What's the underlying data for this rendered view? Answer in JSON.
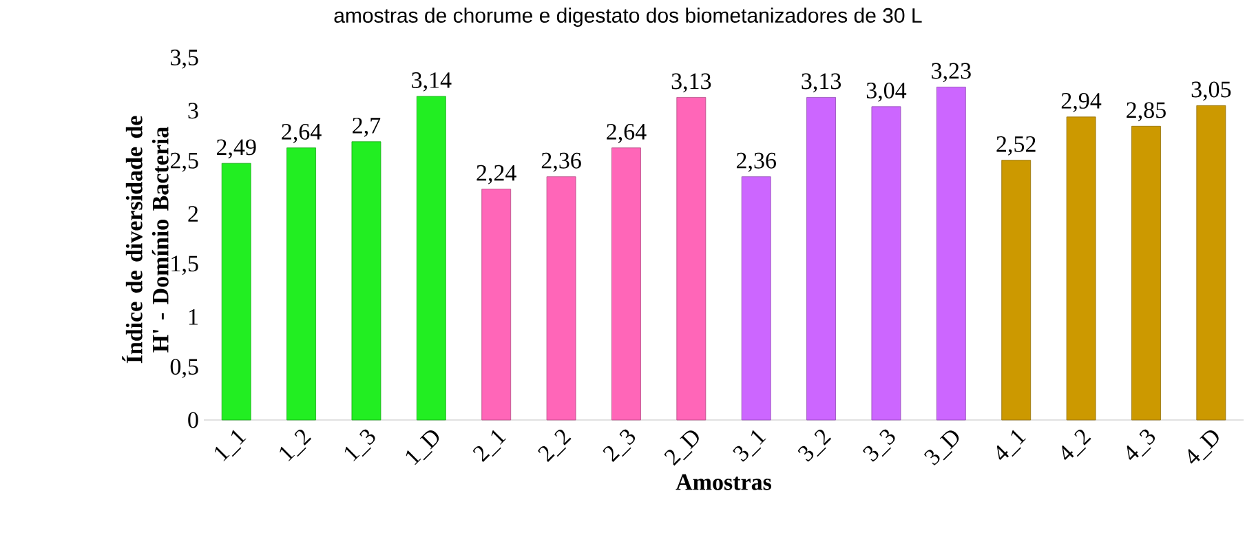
{
  "chart_data": {
    "type": "bar",
    "title": "amostras de chorume e digestato dos biometanizadores de 30 L",
    "xlabel": "Amostras",
    "ylabel": "Índice de diversidade de H' - Domínio Bacteria",
    "categories": [
      "1_1",
      "1_2",
      "1_3",
      "1_D",
      "2_1",
      "2_2",
      "2_3",
      "2_D",
      "3_1",
      "3_2",
      "3_3",
      "3_D",
      "4_1",
      "4_2",
      "4_3",
      "4_D"
    ],
    "values": [
      2.49,
      2.64,
      2.7,
      3.14,
      2.24,
      2.36,
      2.64,
      3.13,
      2.36,
      3.13,
      3.04,
      3.23,
      2.52,
      2.94,
      2.85,
      3.05
    ],
    "value_labels": [
      "2,49",
      "2,64",
      "2,7",
      "3,14",
      "2,24",
      "2,36",
      "2,64",
      "3,13",
      "2,36",
      "3,13",
      "3,04",
      "3,23",
      "2,52",
      "2,94",
      "2,85",
      "3,05"
    ],
    "colors": [
      "#22ee22",
      "#22ee22",
      "#22ee22",
      "#22ee22",
      "#ff66b8",
      "#ff66b8",
      "#ff66b8",
      "#ff66b8",
      "#cc66ff",
      "#cc66ff",
      "#cc66ff",
      "#cc66ff",
      "#cc9900",
      "#cc9900",
      "#cc9900",
      "#cc9900"
    ],
    "ylim": [
      0,
      3.5
    ],
    "yticks": [
      0,
      {
        "value": 0.5,
        "label": "0,5"
      },
      1,
      {
        "value": 1.5,
        "label": "1,5"
      },
      2,
      {
        "value": 2.5,
        "label": "2,5"
      },
      3,
      {
        "value": 3.5,
        "label": "3,5"
      }
    ]
  }
}
